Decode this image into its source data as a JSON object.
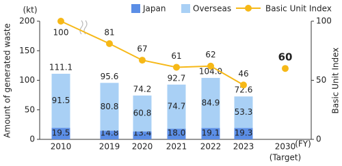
{
  "chart_data": {
    "type": "bar-line",
    "y_unit": "(kt)",
    "x_unit": "(FY)",
    "y_label": "Amount of generated waste",
    "y2_label": "Basic Unit Index",
    "categories": [
      "2010",
      "2019",
      "2020",
      "2021",
      "2022",
      "2023",
      "2030"
    ],
    "category_notes": [
      null,
      null,
      null,
      null,
      null,
      null,
      "(Target)"
    ],
    "series": [
      {
        "name": "Japan",
        "color": "#5b8ee6",
        "values": [
          19.5,
          14.8,
          13.4,
          18.0,
          19.1,
          19.3,
          null
        ],
        "value_labels": [
          "19.5",
          "14.8",
          "13.4",
          "18.0",
          "19.1",
          "19.3",
          null
        ]
      },
      {
        "name": "Overseas",
        "color": "#a9d0f5",
        "values": [
          91.5,
          80.8,
          60.8,
          74.7,
          84.9,
          53.3,
          null
        ]
      },
      {
        "name": "Basic Unit Index",
        "color": "#f6b817",
        "axis": "y2",
        "values": [
          100,
          81,
          67,
          61,
          62,
          46,
          60
        ],
        "target_index": 6
      }
    ],
    "totals": {
      "values": [
        111.1,
        95.6,
        74.2,
        92.7,
        104.0,
        72.6,
        null
      ],
      "value_labels": [
        "111.1",
        "95.6",
        "74.2",
        "92.7",
        "104.0",
        "72.6",
        null
      ]
    },
    "ylim": [
      0,
      200
    ],
    "yticks": [
      0,
      50,
      100,
      150,
      200
    ],
    "y2lim": [
      0,
      100
    ],
    "y2ticks": [
      0,
      50,
      100
    ]
  }
}
